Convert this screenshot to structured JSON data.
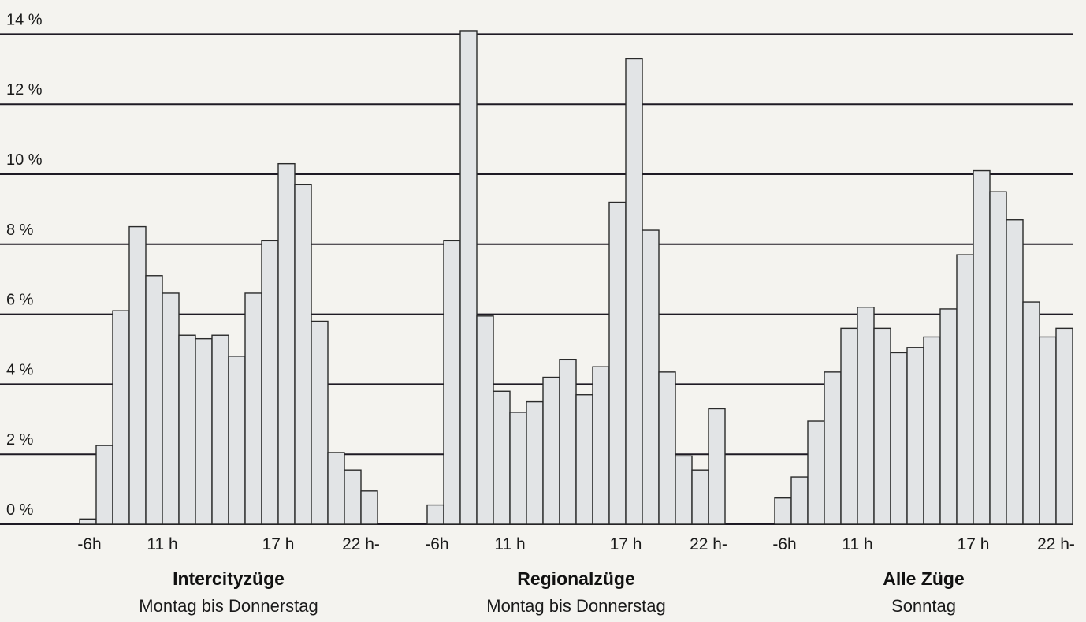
{
  "chart_data": {
    "type": "bar",
    "y_ticks": [
      "0 %",
      "2 %",
      "4 %",
      "6 %",
      "8 %",
      "10 %",
      "12 %",
      "14 %"
    ],
    "ylim": [
      0,
      14
    ],
    "grid": true,
    "x_tick_labels": [
      "-6h",
      "11 h",
      "17 h",
      "22 h-"
    ],
    "groups": [
      {
        "title": "Intercityzüge",
        "subtitle": "Montag bis Donnerstag",
        "values": [
          0.15,
          2.25,
          6.1,
          8.5,
          7.1,
          6.6,
          5.4,
          5.3,
          5.4,
          4.8,
          6.6,
          8.1,
          10.3,
          9.7,
          5.8,
          2.05,
          1.55,
          0.95
        ]
      },
      {
        "title": "Regionalzüge",
        "subtitle": "Montag bis Donnerstag",
        "values": [
          0.55,
          8.1,
          14.1,
          5.95,
          3.8,
          3.2,
          3.5,
          4.2,
          4.7,
          3.7,
          4.5,
          9.2,
          13.3,
          8.4,
          4.35,
          1.95,
          1.55,
          3.3
        ]
      },
      {
        "title": "Alle Züge",
        "subtitle": "Sonntag",
        "values": [
          0.75,
          1.35,
          2.95,
          4.35,
          5.6,
          6.2,
          5.6,
          4.9,
          5.05,
          5.35,
          6.15,
          7.7,
          10.1,
          9.5,
          8.7,
          6.35,
          5.35,
          5.6
        ]
      }
    ]
  }
}
